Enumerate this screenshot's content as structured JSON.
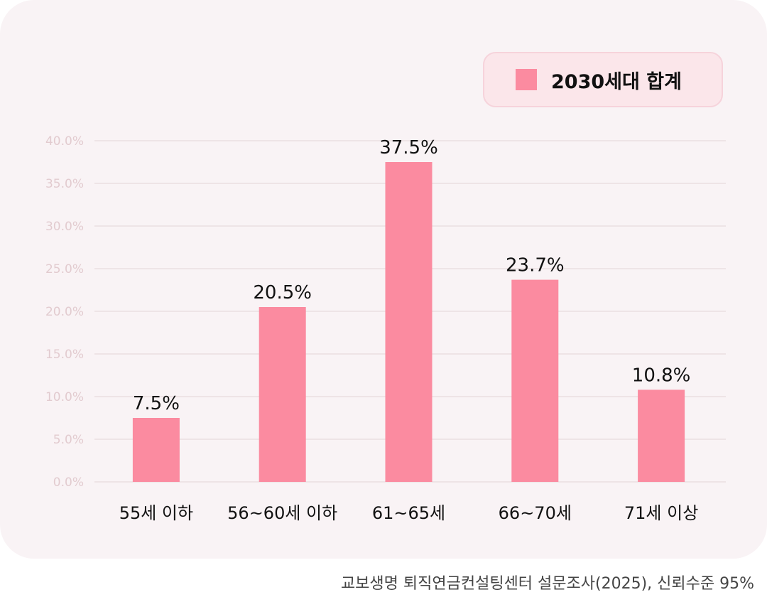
{
  "chart_data": {
    "type": "bar",
    "categories": [
      "55세 이하",
      "56~60세 이하",
      "61~65세",
      "66~70세",
      "71세 이상"
    ],
    "series": [
      {
        "name": "2030세대 합계",
        "values": [
          7.5,
          20.5,
          37.5,
          23.7,
          10.8
        ]
      }
    ],
    "data_labels": [
      "7.5%",
      "20.5%",
      "37.5%",
      "23.7%",
      "10.8%"
    ],
    "y_ticks": [
      "0.0%",
      "5.0%",
      "10.0%",
      "15.0%",
      "20.0%",
      "25.0%",
      "30.0%",
      "35.0%",
      "40.0%"
    ],
    "ylim": [
      0,
      40
    ],
    "grid": true,
    "legend_position": "top-right",
    "colors": {
      "bar": "#fb8ba0",
      "grid": "#e7dadd",
      "tick_text": "#e2cbcf",
      "background": "#f9f3f5"
    }
  },
  "legend": {
    "label": "2030세대 합계"
  },
  "source": "교보생명 퇴직연금컨설팅센터 설문조사(2025), 신뢰수준 95%"
}
